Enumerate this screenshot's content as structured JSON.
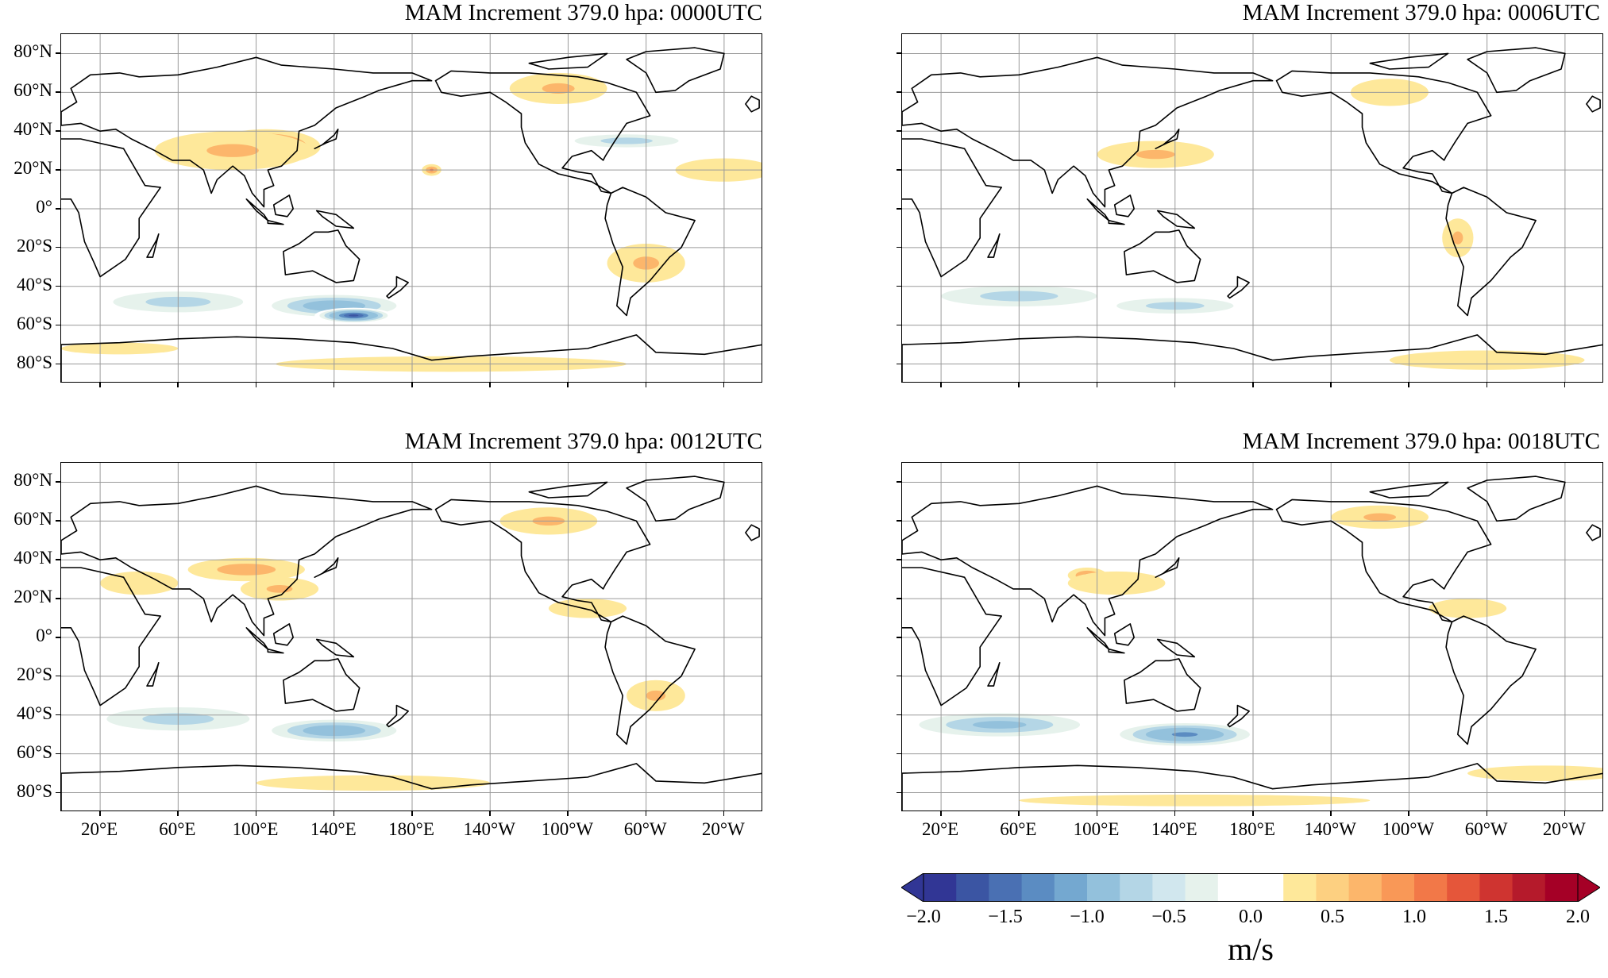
{
  "panels": [
    {
      "title": "MAM Increment 379.0 hpa:  0000UTC"
    },
    {
      "title": "MAM Increment 379.0 hpa:  0006UTC"
    },
    {
      "title": "MAM Increment 379.0 hpa:  0012UTC"
    },
    {
      "title": "MAM Increment 379.0 hpa:  0018UTC"
    }
  ],
  "lat_ticks": [
    "80°N",
    "60°N",
    "40°N",
    "20°N",
    "0°",
    "20°S",
    "40°S",
    "60°S",
    "80°S"
  ],
  "lon_ticks": [
    "20°E",
    "60°E",
    "100°E",
    "140°E",
    "180°E",
    "140°W",
    "100°W",
    "60°W",
    "20°W"
  ],
  "colorbar": {
    "unit": "m/s",
    "tick_labels": [
      "−2.0",
      "−1.5",
      "−1.0",
      "−0.5",
      "0.0",
      "0.5",
      "1.0",
      "1.5",
      "2.0"
    ],
    "range": [
      -2.0,
      2.0
    ],
    "colors": [
      "#313695",
      "#3b55a3",
      "#4a70b3",
      "#5b8cc2",
      "#74a8d0",
      "#93c1dc",
      "#b4d6e6",
      "#d1e7ee",
      "#e6f2ec",
      "#ffffff",
      "#ffffff",
      "#fee89a",
      "#fdd081",
      "#fcb66b",
      "#f99857",
      "#f27848",
      "#e5563a",
      "#cf3430",
      "#b51a2b",
      "#a50026"
    ]
  }
}
